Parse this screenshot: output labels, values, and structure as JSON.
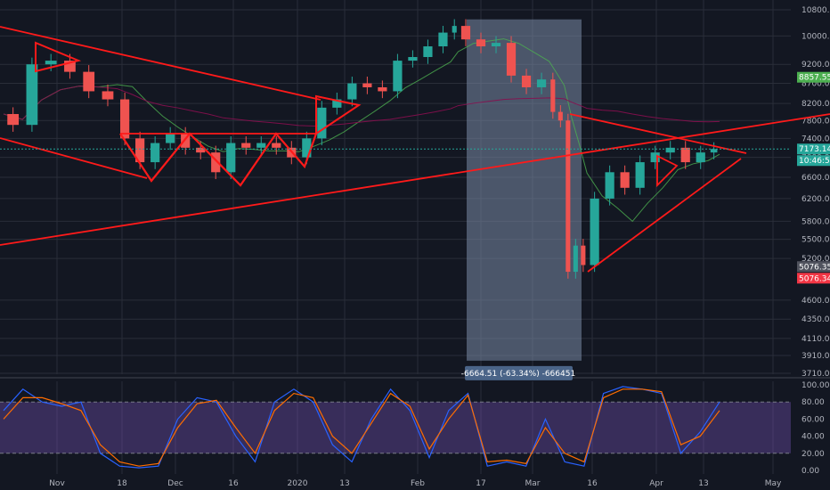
{
  "chart_data": [
    {
      "type": "candlestick",
      "title": "",
      "x_axis": {
        "ticks": [
          "Nov",
          "18",
          "Dec",
          "16",
          "2020",
          "13",
          "Feb",
          "17",
          "Mar",
          "16",
          "Apr",
          "13",
          "May"
        ]
      },
      "y_axis": {
        "scale": "log",
        "ylim": [
          3600,
          10900
        ],
        "ticks": [
          "10800.00",
          "10000.00",
          "9200.00",
          "8700.00",
          "8200.00",
          "7800.00",
          "7400.00",
          "7000.00",
          "6600.00",
          "6200.00",
          "5800.00",
          "5500.00",
          "5200.00",
          "4600.00",
          "4350.00",
          "4110.00",
          "3910.00",
          "3710.00"
        ],
        "tick_values": [
          10800,
          10000,
          9200,
          8700,
          8200,
          7800,
          7400,
          7000,
          6600,
          6200,
          5800,
          5500,
          5200,
          4600,
          4350,
          4110,
          3910,
          3710
        ]
      },
      "grid": true,
      "price_badges": [
        {
          "label": "8857.55",
          "value": 8857.55,
          "color": "#4caf50"
        },
        {
          "label": "7173.14",
          "value": 7173.14,
          "color": "#26a69a"
        },
        {
          "label": "10:46:58",
          "value": 7050,
          "color": "#26a69a"
        },
        {
          "label": "5076.35",
          "value": 5076.35,
          "color": "#50535e"
        },
        {
          "label": "5076.34",
          "value": 5076.34,
          "color": "#f23645"
        }
      ],
      "measurement": {
        "label": "-6664.51 (-63.34%) -666451",
        "from_value": 10500,
        "to_value": 3850
      },
      "price_series": [
        {
          "x": 0,
          "close": 7950
        },
        {
          "x": 5,
          "close": 7700
        },
        {
          "x": 10,
          "close": 9200
        },
        {
          "x": 15,
          "close": 9300
        },
        {
          "x": 20,
          "close": 9000
        },
        {
          "x": 25,
          "close": 8500
        },
        {
          "x": 30,
          "close": 8300
        },
        {
          "x": 34,
          "close": 7400
        },
        {
          "x": 38,
          "close": 6900
        },
        {
          "x": 42,
          "close": 7300
        },
        {
          "x": 46,
          "close": 7500
        },
        {
          "x": 50,
          "close": 7200
        },
        {
          "x": 54,
          "close": 7100
        },
        {
          "x": 58,
          "close": 6700
        },
        {
          "x": 62,
          "close": 7300
        },
        {
          "x": 66,
          "close": 7200
        },
        {
          "x": 70,
          "close": 7300
        },
        {
          "x": 74,
          "close": 7200
        },
        {
          "x": 78,
          "close": 7000
        },
        {
          "x": 82,
          "close": 7400
        },
        {
          "x": 86,
          "close": 8100
        },
        {
          "x": 90,
          "close": 8300
        },
        {
          "x": 94,
          "close": 8700
        },
        {
          "x": 98,
          "close": 8600
        },
        {
          "x": 102,
          "close": 8500
        },
        {
          "x": 106,
          "close": 9300
        },
        {
          "x": 110,
          "close": 9400
        },
        {
          "x": 114,
          "close": 9700
        },
        {
          "x": 118,
          "close": 10100
        },
        {
          "x": 120,
          "close": 10300
        },
        {
          "x": 124,
          "close": 9900
        },
        {
          "x": 128,
          "close": 9700
        },
        {
          "x": 132,
          "close": 9800
        },
        {
          "x": 136,
          "close": 8900
        },
        {
          "x": 140,
          "close": 8600
        },
        {
          "x": 144,
          "close": 8800
        },
        {
          "x": 146,
          "close": 8000
        },
        {
          "x": 148,
          "close": 7800
        },
        {
          "x": 150,
          "close": 5000
        },
        {
          "x": 152,
          "close": 5400
        },
        {
          "x": 154,
          "close": 5100
        },
        {
          "x": 158,
          "close": 6200
        },
        {
          "x": 162,
          "close": 6700
        },
        {
          "x": 166,
          "close": 6400
        },
        {
          "x": 170,
          "close": 6900
        },
        {
          "x": 174,
          "close": 7100
        },
        {
          "x": 178,
          "close": 7200
        },
        {
          "x": 182,
          "close": 6900
        },
        {
          "x": 186,
          "close": 7100
        },
        {
          "x": 189,
          "close": 7173
        }
      ]
    },
    {
      "type": "line",
      "title": "",
      "y_axis": {
        "ylim": [
          0,
          100
        ],
        "ticks": [
          "100.00",
          "80.00",
          "60.00",
          "40.00",
          "20.00",
          "0.00"
        ],
        "tick_values": [
          100,
          80,
          60,
          40,
          20,
          0
        ]
      },
      "band": [
        20,
        80
      ],
      "grid": true,
      "series": [
        {
          "color": "#2962ff",
          "values": [
            70,
            95,
            80,
            75,
            80,
            20,
            5,
            3,
            5,
            60,
            85,
            80,
            40,
            10,
            80,
            95,
            80,
            30,
            10,
            60,
            95,
            70,
            15,
            70,
            90,
            5,
            10,
            5,
            60,
            10,
            5,
            90,
            98,
            95,
            90,
            20,
            45,
            80
          ]
        },
        {
          "color": "#ff6d00",
          "values": [
            60,
            85,
            85,
            78,
            70,
            30,
            10,
            5,
            8,
            50,
            78,
            82,
            50,
            20,
            70,
            90,
            85,
            40,
            20,
            55,
            90,
            75,
            25,
            60,
            88,
            10,
            12,
            8,
            50,
            20,
            10,
            85,
            95,
            95,
            92,
            30,
            40,
            70
          ]
        }
      ]
    }
  ]
}
